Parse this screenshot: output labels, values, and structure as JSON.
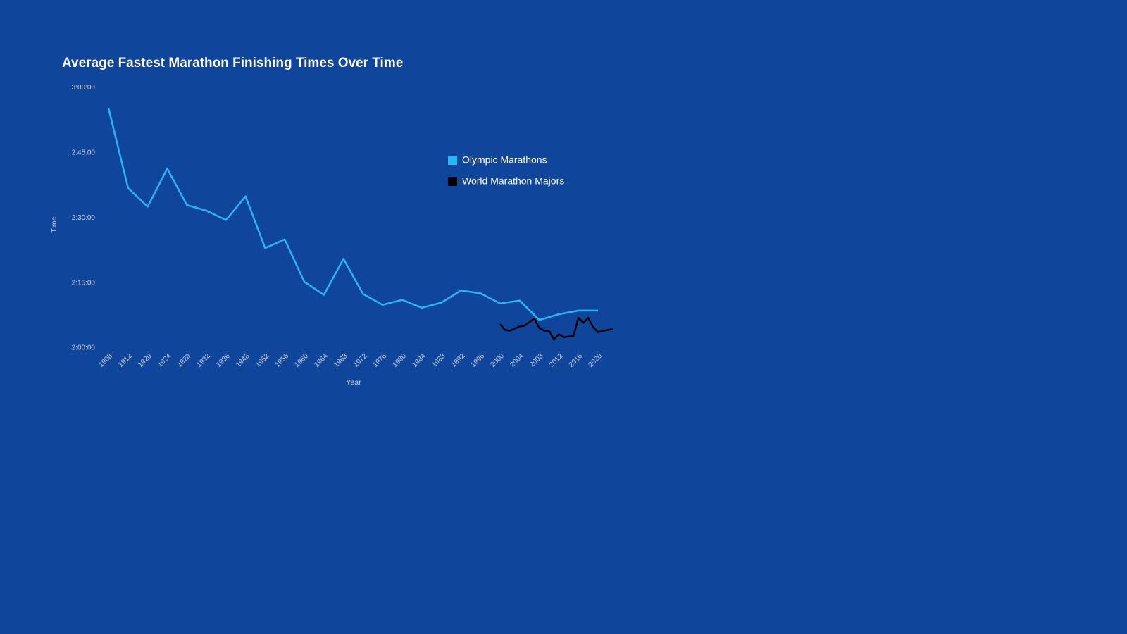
{
  "chart_data": {
    "type": "line",
    "title": "Average Fastest Marathon Finishing Times Over Time",
    "x_label": "Year",
    "y_label": "Time",
    "categories": [
      1908,
      1912,
      1920,
      1924,
      1928,
      1932,
      1936,
      1948,
      1952,
      1956,
      1960,
      1964,
      1968,
      1972,
      1976,
      1980,
      1984,
      1988,
      1992,
      1996,
      2000,
      2004,
      2008,
      2012,
      2016,
      2020
    ],
    "series": [
      {
        "name": "Olympic Marathons",
        "color": "#29b6f6",
        "values": [
          10518,
          9414,
          9155,
          9682,
          9179,
          9100,
          8970,
          9298,
          8582,
          8702,
          8115,
          7936,
          8433,
          7946,
          7797,
          7866,
          7757,
          7827,
          7996,
          7956,
          7817,
          7856,
          7588,
          7667,
          7717,
          7717
        ]
      },
      {
        "name": "World Marathon Majors",
        "color": "#000000",
        "x": [
          2000,
          2001,
          2002,
          2003,
          2004,
          2005,
          2006,
          2007,
          2008,
          2009,
          2010,
          2011,
          2012,
          2013,
          2014,
          2015,
          2016,
          2017,
          2018,
          2019,
          2020,
          2021,
          2022,
          2023
        ],
        "values": [
          7528,
          7449,
          7439,
          7469,
          7498,
          7508,
          7558,
          7608,
          7478,
          7439,
          7439,
          7319,
          7389,
          7349,
          7359,
          7369,
          7618,
          7548,
          7618,
          7488,
          7419,
          7439,
          7449,
          7459
        ]
      }
    ],
    "ylim": [
      7200,
      10800
    ],
    "yticks": [
      {
        "value": 7200,
        "label": "2:00:00"
      },
      {
        "value": 8100,
        "label": "2:15:00"
      },
      {
        "value": 9000,
        "label": "2:30:00"
      },
      {
        "value": 9900,
        "label": "2:45:00"
      },
      {
        "value": 10800,
        "label": "3:00:00"
      }
    ],
    "grid": false
  }
}
